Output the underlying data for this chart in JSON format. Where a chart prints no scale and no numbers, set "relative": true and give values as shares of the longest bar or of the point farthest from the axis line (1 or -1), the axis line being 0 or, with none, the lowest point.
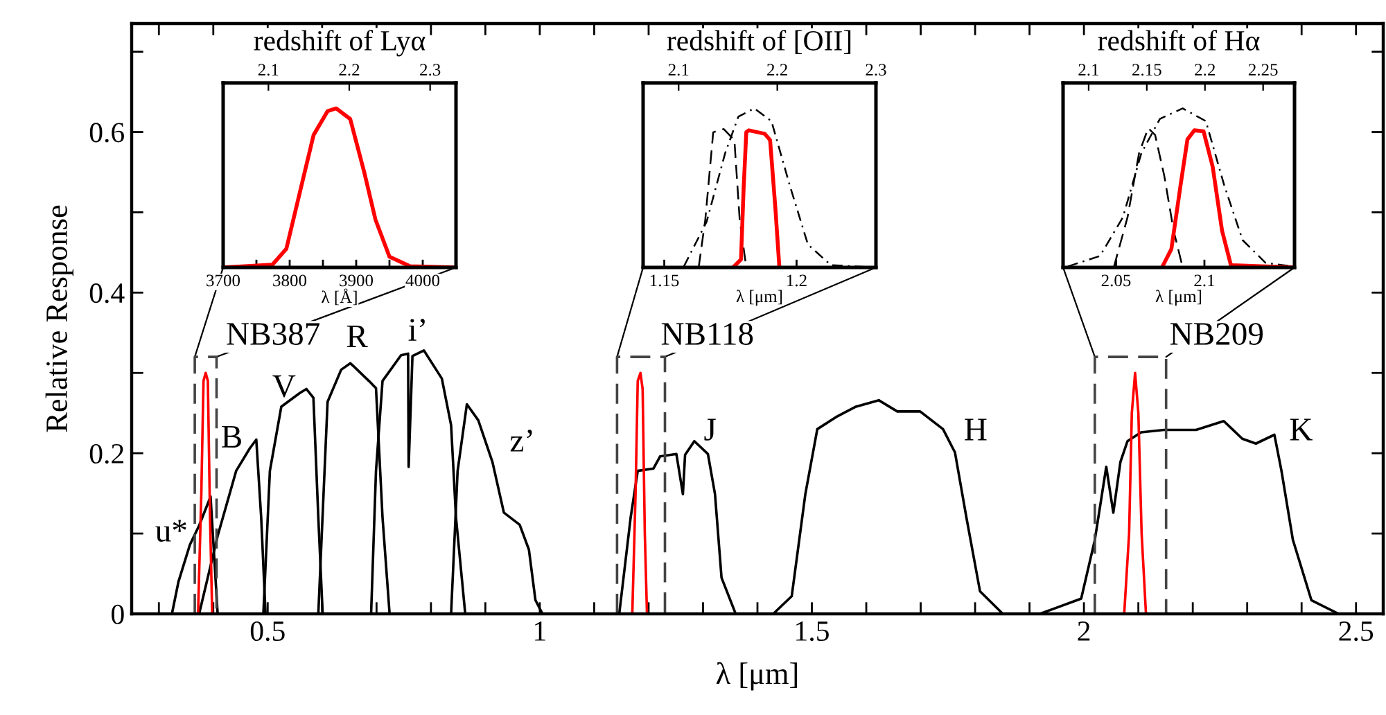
{
  "chart_data": [
    {
      "type": "line",
      "xlabel": "λ [μm]",
      "ylabel": "Relative Response",
      "xlim": [
        0.25,
        2.55
      ],
      "ylim": [
        0,
        0.735
      ],
      "xticks": [
        {
          "value": 0.3,
          "label": null
        },
        {
          "value": 0.4,
          "label": null
        },
        0.5,
        {
          "value": 0.6,
          "label": null
        },
        {
          "value": 0.7,
          "label": null
        },
        {
          "value": 0.8,
          "label": null
        },
        {
          "value": 0.9,
          "label": null
        },
        1,
        {
          "value": 1.1,
          "label": null
        },
        {
          "value": 1.2,
          "label": null
        },
        {
          "value": 1.3,
          "label": null
        },
        {
          "value": 1.4,
          "label": null
        },
        1.5,
        {
          "value": 1.6,
          "label": null
        },
        {
          "value": 1.7,
          "label": null
        },
        {
          "value": 1.8,
          "label": null
        },
        {
          "value": 1.9,
          "label": null
        },
        2,
        {
          "value": 2.1,
          "label": null
        },
        {
          "value": 2.2,
          "label": null
        },
        {
          "value": 2.3,
          "label": null
        },
        {
          "value": 2.4,
          "label": null
        },
        2.5
      ],
      "yticks": [
        0,
        {
          "value": 0.1,
          "label": null
        },
        0.2,
        {
          "value": 0.3,
          "label": null
        },
        0.4,
        {
          "value": 0.5,
          "label": null
        },
        0.6,
        {
          "value": 0.7,
          "label": null
        }
      ],
      "grid": false,
      "series": [
        {
          "name": "u*",
          "color": "#000000",
          "x": [
            0.324,
            0.336,
            0.357,
            0.374,
            0.395,
            0.408
          ],
          "values": [
            0,
            0.04,
            0.086,
            0.11,
            0.146,
            0
          ]
        },
        {
          "name": "B",
          "color": "#000000",
          "x": [
            0.374,
            0.408,
            0.442,
            0.467,
            0.479,
            0.488,
            0.496
          ],
          "values": [
            0,
            0.097,
            0.178,
            0.206,
            0.217,
            0.12,
            0
          ]
        },
        {
          "name": "V",
          "color": "#000000",
          "x": [
            0.492,
            0.504,
            0.525,
            0.559,
            0.571,
            0.584,
            0.593,
            0.601
          ],
          "values": [
            0,
            0.178,
            0.258,
            0.275,
            0.28,
            0.269,
            0.12,
            0
          ]
        },
        {
          "name": "R",
          "color": "#000000",
          "x": [
            0.593,
            0.61,
            0.635,
            0.652,
            0.686,
            0.699,
            0.711,
            0.724
          ],
          "values": [
            0,
            0.264,
            0.304,
            0.312,
            0.29,
            0.281,
            0.12,
            0
          ]
        },
        {
          "name": "i’",
          "color": "#000000",
          "x": [
            0.69,
            0.699,
            0.711,
            0.745,
            0.758,
            0.759,
            0.766,
            0.787,
            0.82,
            0.837,
            0.846,
            0.863
          ],
          "values": [
            0,
            0.178,
            0.29,
            0.322,
            0.324,
            0.183,
            0.321,
            0.328,
            0.293,
            0.235,
            0.12,
            0
          ]
        },
        {
          "name": "z’",
          "color": "#000000",
          "x": [
            0.837,
            0.849,
            0.866,
            0.887,
            0.913,
            0.934,
            0.963,
            0.98,
            0.992,
            1.005
          ],
          "values": [
            0,
            0.178,
            0.261,
            0.241,
            0.189,
            0.126,
            0.111,
            0.08,
            0.017,
            0
          ]
        },
        {
          "name": "J",
          "color": "#000000",
          "x": [
            1.146,
            1.167,
            1.18,
            1.209,
            1.221,
            1.251,
            1.263,
            1.267,
            1.284,
            1.309,
            1.322,
            1.334,
            1.36
          ],
          "values": [
            0,
            0.12,
            0.178,
            0.181,
            0.196,
            0.199,
            0.149,
            0.198,
            0.215,
            0.199,
            0.149,
            0.045,
            0
          ]
        },
        {
          "name": "H",
          "color": "#000000",
          "x": [
            1.429,
            1.463,
            1.488,
            1.51,
            1.547,
            1.581,
            1.623,
            1.657,
            1.699,
            1.741,
            1.763,
            1.784,
            1.809,
            1.851
          ],
          "values": [
            0,
            0.022,
            0.149,
            0.23,
            0.246,
            0.258,
            0.266,
            0.252,
            0.252,
            0.23,
            0.201,
            0.12,
            0.028,
            0
          ]
        },
        {
          "name": "K",
          "color": "#000000",
          "x": [
            1.919,
            1.995,
            2.02,
            2.041,
            2.054,
            2.067,
            2.08,
            2.105,
            2.147,
            2.206,
            2.257,
            2.291,
            2.316,
            2.35,
            2.363,
            2.384,
            2.418,
            2.468
          ],
          "values": [
            0,
            0.019,
            0.092,
            0.183,
            0.126,
            0.189,
            0.215,
            0.226,
            0.229,
            0.229,
            0.24,
            0.218,
            0.212,
            0.223,
            0.178,
            0.092,
            0.017,
            0
          ]
        },
        {
          "color": "#ff0000",
          "x": [
            0.372,
            0.378,
            0.382,
            0.386,
            0.39,
            0.394,
            0.398
          ],
          "values": [
            0,
            0.15,
            0.29,
            0.3,
            0.29,
            0.12,
            0
          ]
        },
        {
          "color": "#ff0000",
          "x": [
            1.17,
            1.176,
            1.18,
            1.185,
            1.189,
            1.193,
            1.197
          ],
          "values": [
            0,
            0.15,
            0.29,
            0.3,
            0.28,
            0.1,
            0
          ]
        },
        {
          "color": "#ff0000",
          "x": [
            2.074,
            2.083,
            2.088,
            2.094,
            2.1,
            2.106,
            2.114
          ],
          "values": [
            0,
            0.1,
            0.25,
            0.3,
            0.25,
            0.1,
            0
          ]
        },
        {
          "name": "NB387",
          "color": "#444444",
          "line_style": "dashed",
          "x": [
            0.366,
            0.366,
            0.406,
            0.406
          ],
          "values": [
            0,
            0.32,
            0.32,
            0
          ]
        },
        {
          "name": "NB118",
          "color": "#444444",
          "line_style": "dashed",
          "x": [
            1.142,
            1.142,
            1.23,
            1.23
          ],
          "values": [
            0,
            0.32,
            0.32,
            0
          ]
        },
        {
          "name": "NB209",
          "color": "#444444",
          "line_style": "dashed",
          "x": [
            2.02,
            2.02,
            2.151,
            2.151
          ],
          "values": [
            0,
            0.32,
            0.32,
            0
          ]
        }
      ]
    },
    {
      "type": "line",
      "title": "redshift of Lyα",
      "xlabel": "λ [Å]",
      "relative": true,
      "tick_labels": "x",
      "xlim": [
        3700,
        4050
      ],
      "xticks": [
        3700,
        {
          "value": 3750,
          "label": null
        },
        3800,
        {
          "value": 3850,
          "label": null
        },
        3900,
        {
          "value": 3950,
          "label": null
        },
        4000
      ],
      "x2lim": [
        2.044,
        2.332
      ],
      "x2ticks": [
        2.1,
        2.2,
        2.3
      ],
      "series": [
        {
          "color": "#ff0000",
          "x": [
            3700,
            3774,
            3795,
            3815,
            3836,
            3857,
            3870,
            3891,
            3912,
            3929,
            3950,
            3981,
            4046
          ],
          "values": [
            0,
            0.017,
            0.117,
            0.467,
            0.833,
            0.983,
            1,
            0.933,
            0.6,
            0.3,
            0.067,
            0.007,
            0
          ]
        }
      ]
    },
    {
      "type": "line",
      "title": "redshift of [OII]",
      "xlabel": "λ [μm]",
      "relative": true,
      "tick_labels": "x",
      "xlim": [
        1.142,
        1.23
      ],
      "xticks": [
        1.15,
        1.2
      ],
      "x2lim": [
        2.064,
        2.3
      ],
      "x2ticks": [
        2.1,
        2.2,
        2.3
      ],
      "series": [
        {
          "color": "#000000",
          "line_style": "dashdot",
          "x": [
            1.1574,
            1.166,
            1.173,
            1.178,
            1.184,
            1.1905,
            1.1974,
            1.2043,
            1.213,
            1.2297
          ],
          "values": [
            0.006,
            0.287,
            0.718,
            0.948,
            1,
            0.92,
            0.517,
            0.144,
            0.014,
            0
          ]
        },
        {
          "color": "#000000",
          "line_style": "dashed",
          "x": [
            1.163,
            1.1655,
            1.1685,
            1.1725,
            1.1765,
            1.1785,
            1.181
          ],
          "values": [
            0,
            0.3,
            0.85,
            0.87,
            0.8,
            0.3,
            0
          ]
        },
        {
          "color": "#ff0000",
          "x": [
            1.176,
            1.179,
            1.18,
            1.181,
            1.182,
            1.188,
            1.19,
            1.192,
            1.1935
          ],
          "values": [
            0,
            0.05,
            0.5,
            0.85,
            0.862,
            0.84,
            0.8,
            0.37,
            0
          ]
        }
      ]
    },
    {
      "type": "line",
      "title": "redshift of Hα",
      "xlabel": "λ [μm]",
      "relative": true,
      "tick_labels": "x",
      "xlim": [
        2.02,
        2.151
      ],
      "xticks": [
        2.05,
        2.1
      ],
      "x2lim": [
        2.078,
        2.277
      ],
      "x2ticks": [
        2.1,
        2.15,
        2.2,
        2.25
      ],
      "series": [
        {
          "color": "#000000",
          "line_style": "dashdot",
          "x": [
            2.0227,
            2.0409,
            2.0539,
            2.0643,
            2.0748,
            2.0877,
            2.1008,
            2.1112,
            2.1216,
            2.1346,
            2.15
          ],
          "values": [
            0.006,
            0.072,
            0.316,
            0.718,
            0.934,
            1,
            0.92,
            0.517,
            0.172,
            0.029,
            0.006
          ]
        },
        {
          "color": "#000000",
          "line_style": "dashed",
          "x": [
            2.0487,
            2.0565,
            2.063,
            2.0682,
            2.0721,
            2.0773,
            2.0826,
            2.0877
          ],
          "values": [
            0,
            0.316,
            0.718,
            0.876,
            0.833,
            0.575,
            0.23,
            0
          ]
        },
        {
          "color": "#ff0000",
          "x": [
            2.076,
            2.0813,
            2.0865,
            2.0904,
            2.0943,
            2.0995,
            2.1047,
            2.11,
            2.115,
            2.15
          ],
          "values": [
            0,
            0.115,
            0.517,
            0.805,
            0.862,
            0.856,
            0.632,
            0.23,
            0.014,
            0
          ]
        }
      ]
    }
  ]
}
